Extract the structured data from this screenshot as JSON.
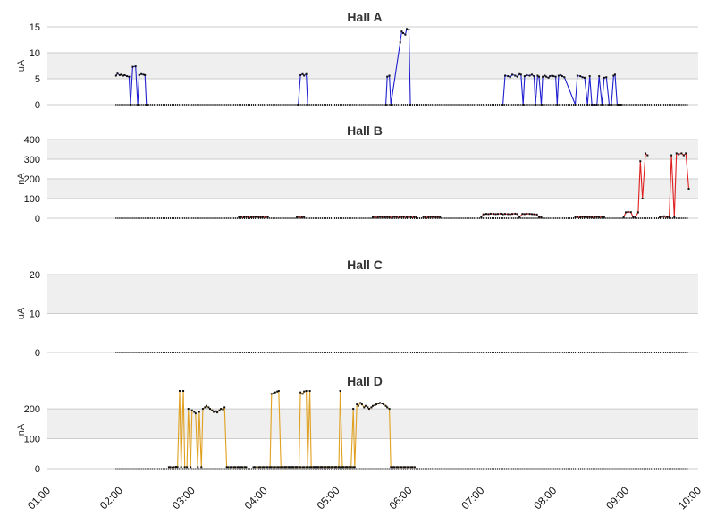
{
  "chart_data": {
    "type": "line",
    "x_ticks": [
      "01:00",
      "02:00",
      "03:00",
      "04:00",
      "05:00",
      "06:00",
      "07:00",
      "08:00",
      "09:00",
      "10:00"
    ],
    "panels": [
      {
        "title": "Hall A",
        "ylabel": "uA",
        "yticks": [
          "0",
          "5",
          "10",
          "15"
        ],
        "ylim": [
          0,
          15
        ],
        "color": "#1f1fd0",
        "segments": [
          {
            "x": [
              1.95,
              1.97,
              2.0,
              2.02,
              2.05,
              2.07,
              2.1,
              2.13,
              2.15,
              2.18,
              2.22,
              2.25,
              2.27,
              2.3,
              2.33,
              2.35,
              2.37
            ],
            "y": [
              5.6,
              6.0,
              5.7,
              5.8,
              5.6,
              5.7,
              5.5,
              5.4,
              0,
              7.3,
              7.4,
              0,
              5.7,
              5.9,
              5.8,
              5.7,
              0
            ]
          },
          {
            "x": [
              4.47,
              4.5,
              4.53,
              4.55,
              4.58,
              4.6
            ],
            "y": [
              0,
              5.7,
              5.9,
              5.6,
              5.9,
              0
            ]
          },
          {
            "x": [
              5.68,
              5.7,
              5.73,
              5.75,
              5.88,
              5.9,
              5.92,
              5.95,
              5.97
            ],
            "y": [
              0,
              5.4,
              5.6,
              0,
              12.0,
              14.1,
              13.8,
              13.5,
              14.6
            ]
          },
          {
            "x": [
              6.0,
              6.02
            ],
            "y": [
              14.5,
              0
            ]
          },
          {
            "x": [
              7.3,
              7.33,
              7.37,
              7.4,
              7.43,
              7.47,
              7.5,
              7.53,
              7.55,
              7.58,
              7.6,
              7.63,
              7.67,
              7.7,
              7.73,
              7.75,
              7.78,
              7.8,
              7.83,
              7.85,
              7.88,
              7.9,
              7.93,
              7.95,
              7.98,
              8.0,
              8.03,
              8.05,
              8.07,
              8.1,
              8.12,
              8.15,
              8.3,
              8.33,
              8.37,
              8.4,
              8.43,
              8.47,
              8.5,
              8.53,
              8.57,
              8.6,
              8.63,
              8.67,
              8.7,
              8.73,
              8.77,
              8.8,
              8.83,
              8.85,
              8.88,
              8.9,
              8.93
            ],
            "y": [
              0,
              5.6,
              5.5,
              5.3,
              5.8,
              5.6,
              5.4,
              5.9,
              5.8,
              0,
              5.5,
              5.7,
              5.6,
              5.8,
              5.5,
              0,
              5.6,
              5.4,
              0,
              5.4,
              5.6,
              5.4,
              5.2,
              5.5,
              5.6,
              5.5,
              5.4,
              0,
              5.6,
              5.7,
              5.5,
              5.3,
              0,
              5.6,
              5.5,
              5.3,
              5.2,
              0,
              5.5,
              0,
              0,
              0,
              5.5,
              0,
              5.2,
              5.3,
              0,
              0,
              5.6,
              5.8,
              0,
              0,
              0
            ]
          }
        ]
      },
      {
        "title": "Hall B",
        "ylabel": "nA",
        "yticks": [
          "0",
          "100",
          "200",
          "300",
          "400"
        ],
        "ylim": [
          0,
          400
        ],
        "color": "#e02020",
        "segments": [
          {
            "x": [
              3.65,
              3.68,
              3.72,
              3.75,
              3.78,
              3.82,
              3.85,
              3.88,
              3.92,
              3.95,
              3.98,
              4.02,
              4.05
            ],
            "y": [
              5,
              6,
              5,
              7,
              6,
              5,
              6,
              7,
              6,
              5,
              6,
              5,
              6
            ]
          },
          {
            "x": [
              4.45,
              4.48,
              4.52,
              4.55
            ],
            "y": [
              5,
              6,
              5,
              6
            ]
          },
          {
            "x": [
              5.5,
              5.53,
              5.57,
              5.6,
              5.63,
              5.67,
              5.7,
              5.73,
              5.77,
              5.8,
              5.83,
              5.87,
              5.9,
              5.93,
              5.97,
              6.0,
              6.03,
              6.07,
              6.1
            ],
            "y": [
              5,
              6,
              5,
              7,
              6,
              5,
              6,
              5,
              6,
              7,
              6,
              5,
              6,
              7,
              5,
              6,
              5,
              6,
              5
            ]
          },
          {
            "x": [
              6.2,
              6.23,
              6.27,
              6.3,
              6.33,
              6.37,
              6.4,
              6.43
            ],
            "y": [
              5,
              6,
              5,
              6,
              7,
              5,
              6,
              5
            ]
          },
          {
            "x": [
              7.0,
              7.03,
              7.07,
              7.1,
              7.13,
              7.17,
              7.2,
              7.23,
              7.27,
              7.3,
              7.33,
              7.37,
              7.4,
              7.43,
              7.47,
              7.5,
              7.53,
              7.57,
              7.6,
              7.63,
              7.67,
              7.7,
              7.73,
              7.77,
              7.8,
              7.83
            ],
            "y": [
              5,
              20,
              22,
              21,
              23,
              22,
              21,
              22,
              23,
              20,
              22,
              21,
              20,
              22,
              23,
              21,
              5,
              22,
              21,
              23,
              22,
              21,
              20,
              19,
              5,
              5
            ]
          },
          {
            "x": [
              8.3,
              8.33,
              8.37,
              8.4,
              8.43,
              8.47,
              8.5,
              8.53,
              8.57,
              8.6,
              8.63,
              8.67,
              8.7
            ],
            "y": [
              5,
              6,
              5,
              7,
              6,
              5,
              6,
              5,
              6,
              7,
              5,
              6,
              5
            ]
          },
          {
            "x": [
              8.97,
              9.0,
              9.03,
              9.07,
              9.1,
              9.13,
              9.17,
              9.2,
              9.23,
              9.27,
              9.3
            ],
            "y": [
              5,
              30,
              32,
              31,
              5,
              5,
              30,
              290,
              100,
              330,
              320
            ]
          },
          {
            "x": [
              9.47,
              9.5,
              9.53,
              9.57,
              9.6,
              9.63,
              9.67,
              9.7,
              9.73,
              9.77,
              9.8,
              9.83,
              9.87
            ],
            "y": [
              5,
              8,
              10,
              6,
              5,
              320,
              5,
              330,
              325,
              330,
              320,
              330,
              150
            ]
          }
        ]
      },
      {
        "title": "Hall C",
        "ylabel": "uA",
        "yticks": [
          "0",
          "10",
          "20"
        ],
        "ylim": [
          0,
          20
        ],
        "color": "#e8a010",
        "segments": []
      },
      {
        "title": "Hall D",
        "ylabel": "nA",
        "yticks": [
          "0",
          "100",
          "200"
        ],
        "ylim": [
          0,
          260
        ],
        "color": "#e0a020",
        "segments": [
          {
            "x": [
              2.68,
              2.7,
              2.73,
              2.75,
              2.78,
              2.8,
              2.83,
              2.85,
              2.88,
              2.9,
              2.93,
              2.95,
              2.98,
              3.0,
              3.03,
              3.05,
              3.08,
              3.1,
              3.13,
              3.15,
              3.18,
              3.2,
              3.23,
              3.25,
              3.28,
              3.3,
              3.33,
              3.35,
              3.38,
              3.4,
              3.43,
              3.45,
              3.48,
              3.5,
              3.53,
              3.55,
              3.58,
              3.6,
              3.63,
              3.65,
              3.68,
              3.7,
              3.73,
              3.75
            ],
            "y": [
              5,
              5,
              4,
              5,
              6,
              5,
              260,
              5,
              260,
              5,
              5,
              200,
              5,
              195,
              190,
              185,
              5,
              190,
              5,
              200,
              205,
              210,
              205,
              200,
              195,
              190,
              192,
              188,
              195,
              200,
              198,
              205,
              5,
              5,
              5,
              5,
              5,
              5,
              5,
              5,
              5,
              5,
              5,
              5
            ]
          },
          {
            "x": [
              3.85,
              3.87,
              3.9,
              3.93,
              3.95,
              3.98,
              4.0,
              4.03,
              4.05,
              4.08,
              4.1,
              4.13,
              4.15,
              4.18,
              4.2,
              4.23,
              4.25,
              4.28,
              4.3,
              4.33,
              4.35,
              4.38,
              4.4,
              4.43,
              4.45,
              4.48,
              4.5,
              4.53,
              4.55,
              4.58,
              4.6,
              4.63,
              4.65,
              4.68,
              4.7,
              4.73,
              4.75,
              4.78,
              4.8,
              4.83,
              4.85,
              4.88,
              4.9,
              4.93,
              4.95,
              4.98,
              5.0,
              5.03,
              5.05,
              5.08,
              5.1,
              5.13,
              5.15,
              5.18,
              5.2,
              5.23
            ],
            "y": [
              5,
              5,
              5,
              5,
              5,
              5,
              5,
              5,
              5,
              5,
              5,
              5,
              5,
              5,
              5,
              5,
              5,
              5,
              5,
              5,
              5,
              5,
              5,
              5,
              5,
              5,
              5,
              5,
              5,
              5,
              5,
              5,
              5,
              5,
              5,
              5,
              5,
              5,
              5,
              5,
              5,
              5,
              5,
              5,
              5,
              5,
              5,
              5,
              5,
              5,
              5,
              5,
              5,
              5,
              5,
              5
            ]
          },
          {
            "x": [
              4.08,
              4.1,
              4.13,
              4.15,
              4.18,
              4.2,
              4.23,
              4.25,
              4.28,
              4.3,
              4.33,
              4.35,
              4.38,
              4.4,
              4.43,
              4.45,
              4.48,
              4.5,
              4.53,
              4.55,
              4.58,
              4.6,
              4.63,
              4.65,
              4.68,
              4.7,
              4.73,
              4.75,
              4.78,
              4.8,
              4.83,
              4.85,
              4.88,
              4.9,
              4.93,
              4.95,
              4.98,
              5.0,
              5.03,
              5.05,
              5.08,
              5.1,
              5.13,
              5.15,
              5.18,
              5.2,
              5.23,
              5.25,
              5.28,
              5.3,
              5.33,
              5.35,
              5.38,
              5.4,
              5.43,
              5.45,
              5.48,
              5.5,
              5.53,
              5.55,
              5.58,
              5.6,
              5.63,
              5.65,
              5.68,
              5.7,
              5.73,
              5.75,
              5.78,
              5.8,
              5.83,
              5.85,
              5.88,
              5.9,
              5.93,
              5.95,
              5.98,
              6.0,
              6.03,
              6.05,
              6.08
            ],
            "y": [
              5,
              250,
              252,
              255,
              258,
              260,
              5,
              5,
              5,
              5,
              5,
              5,
              5,
              5,
              5,
              5,
              5,
              255,
              250,
              258,
              260,
              5,
              260,
              5,
              5,
              5,
              5,
              5,
              5,
              5,
              5,
              5,
              5,
              5,
              5,
              5,
              5,
              5,
              5,
              260,
              5,
              5,
              5,
              5,
              5,
              5,
              200,
              5,
              215,
              210,
              220,
              215,
              205,
              210,
              205,
              200,
              205,
              210,
              212,
              215,
              218,
              220,
              218,
              215,
              210,
              205,
              200,
              5,
              5,
              5,
              5,
              5,
              5,
              5,
              5,
              5,
              5,
              5,
              5,
              5,
              5
            ]
          }
        ]
      }
    ]
  }
}
